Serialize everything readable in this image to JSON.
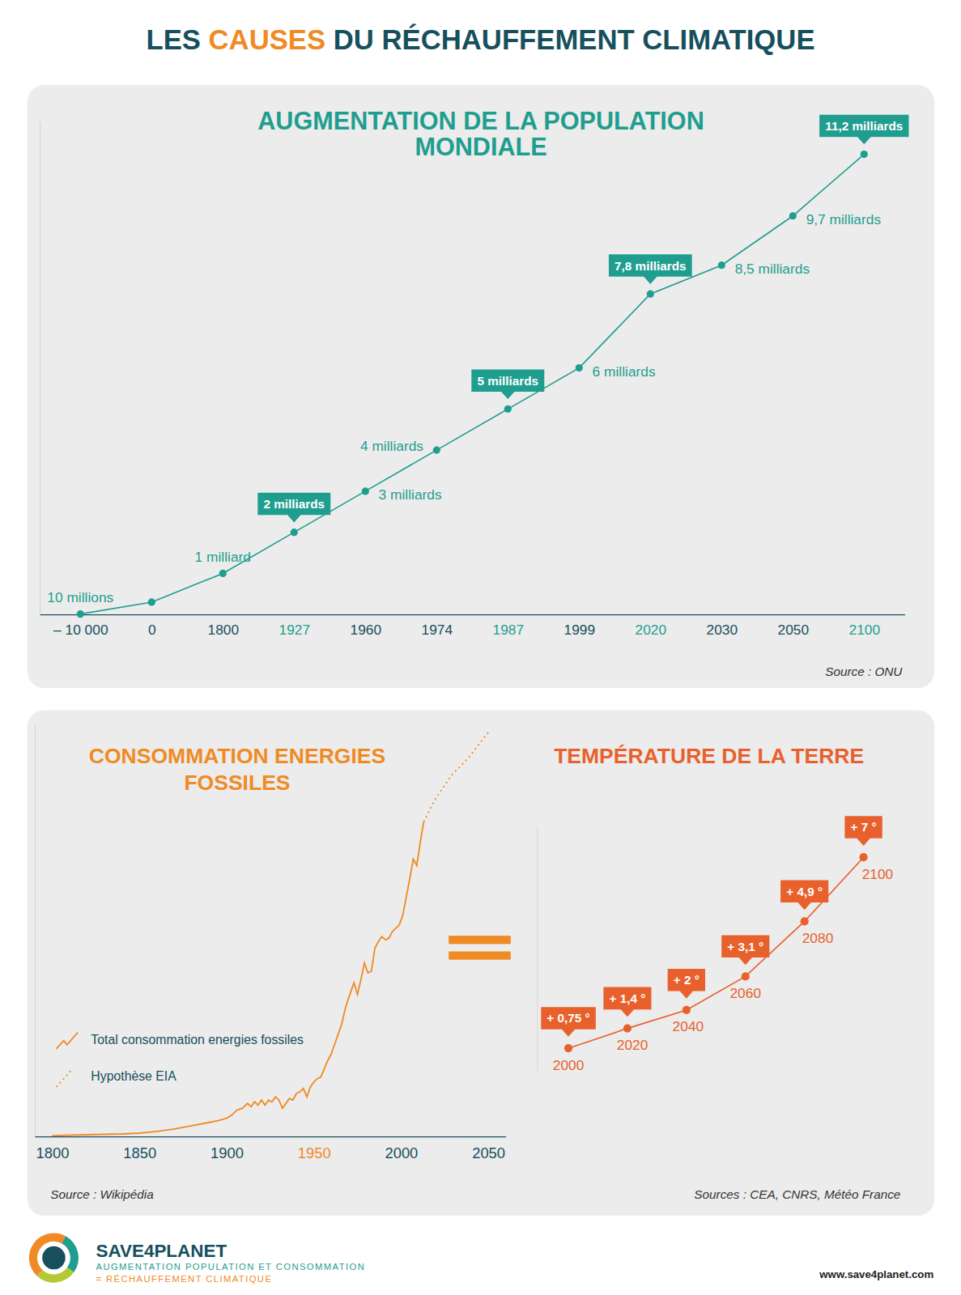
{
  "header": {
    "title": [
      "LES ",
      "CAUSES",
      " DU RÉCHAUFFEMENT CLIMATIQUE"
    ]
  },
  "chart_data": [
    {
      "type": "line",
      "title": "AUGMENTATION DE LA POPULATION\nMONDIALE",
      "source": "Source : ONU",
      "categories": [
        "– 10 000",
        "0",
        "1800",
        "1927",
        "1960",
        "1974",
        "1987",
        "1999",
        "2020",
        "2030",
        "2050",
        "2100"
      ],
      "values": [
        0.01,
        0.3,
        1,
        2,
        3,
        4,
        5,
        6,
        7.8,
        8.5,
        9.7,
        11.2
      ],
      "value_labels": [
        "10 millions",
        null,
        "1 milliard",
        "2 milliards",
        "3 milliards",
        "4 milliards",
        "5 milliards",
        "6 milliards",
        "7,8 milliards",
        "8,5 milliards",
        "9,7 milliards",
        "11,2 milliards"
      ],
      "color": "#1f9e8f",
      "marker": "circle",
      "ylim": [
        0,
        12
      ],
      "data_labels": true,
      "tick_labels": "x"
    },
    {
      "type": "line",
      "title": "CONSOMMATION ENERGIES\nFOSSILES",
      "source": "Source : Wikipédia",
      "x": [
        1800,
        1820,
        1840,
        1850,
        1860,
        1870,
        1880,
        1890,
        1895,
        1900,
        1903,
        1906,
        1909,
        1912,
        1914,
        1916,
        1918,
        1920,
        1922,
        1924,
        1926,
        1928,
        1930,
        1932,
        1934,
        1936,
        1938,
        1940,
        1942,
        1944,
        1946,
        1948,
        1950,
        1952,
        1954,
        1956,
        1958,
        1960,
        1962,
        1964,
        1966,
        1968,
        1970,
        1972,
        1973,
        1975,
        1977,
        1979,
        1981,
        1983,
        1985,
        1987,
        1989,
        1991,
        1993,
        1995,
        1997,
        1999,
        2001,
        2003,
        2005,
        2007,
        2009,
        2011,
        2013,
        2020,
        2025,
        2030,
        2035,
        2040,
        2045,
        2050
      ],
      "series": [
        {
          "name": "Total consommation energies fossiles",
          "color": "#f08a24",
          "line_style": "solid",
          "values": [
            350,
            700,
            1050,
            1400,
            2100,
            3150,
            4550,
            5950,
            6650,
            7700,
            9100,
            11200,
            11900,
            14000,
            12600,
            14700,
            13300,
            15400,
            13300,
            15400,
            14700,
            16800,
            15400,
            11900,
            14000,
            16100,
            15400,
            18200,
            18900,
            20300,
            16800,
            21000,
            23100,
            24500,
            25200,
            28700,
            32200,
            35000,
            39200,
            43400,
            47600,
            54250,
            58800,
            63000,
            65100,
            60200,
            66500,
            73500,
            69300,
            70000,
            79800,
            82600,
            84700,
            83300,
            84000,
            86800,
            88200,
            89600,
            93800,
            101500,
            109200,
            117600,
            114800,
            124600,
            133350,
            null,
            null,
            null,
            null,
            null,
            null,
            null
          ]
        },
        {
          "name": "Hypothèse EIA",
          "color": "#f08a24",
          "line_style": "dotted",
          "values": [
            null,
            null,
            null,
            null,
            null,
            null,
            null,
            null,
            null,
            null,
            null,
            null,
            null,
            null,
            null,
            null,
            null,
            null,
            null,
            null,
            null,
            null,
            null,
            null,
            null,
            null,
            null,
            null,
            null,
            null,
            null,
            null,
            null,
            null,
            null,
            null,
            null,
            null,
            null,
            null,
            null,
            null,
            null,
            null,
            null,
            null,
            null,
            null,
            null,
            null,
            null,
            null,
            null,
            null,
            null,
            null,
            null,
            null,
            null,
            null,
            null,
            null,
            null,
            null,
            133350,
            143500,
            148750,
            154000,
            157500,
            161700,
            166600,
            171150
          ]
        }
      ],
      "xlim": [
        1790,
        2060
      ],
      "xticks": [
        1800,
        1850,
        1900,
        1950,
        2000,
        2050
      ],
      "ylim": [
        0,
        175000
      ],
      "legend": "lower left",
      "tick_labels": "x"
    },
    {
      "type": "line",
      "title": "TEMPÉRATURE DE LA TERRE",
      "source": "Sources : CEA, CNRS, Météo France",
      "categories": [
        "2000",
        "2020",
        "2040",
        "2060",
        "2080",
        "2100"
      ],
      "values": [
        0.75,
        1.4,
        2,
        3.1,
        4.9,
        7
      ],
      "value_labels": [
        "+ 0,75 °",
        "+ 1,4 °",
        "+ 2 °",
        "+ 3,1 °",
        "+ 4,9 °",
        "+ 7 °"
      ],
      "color": "#e8612c",
      "marker": "circle",
      "ylim": [
        0,
        8
      ],
      "data_labels": true,
      "tick_labels": "x"
    }
  ],
  "footer": {
    "brand": "SAVE4PLANET",
    "tagline": [
      "AUGMENTATION POPULATION ET CONSOMMATION",
      "= RÉCHAUFFEMENT CLIMATIQUE"
    ],
    "url": "www.save4planet.com"
  }
}
